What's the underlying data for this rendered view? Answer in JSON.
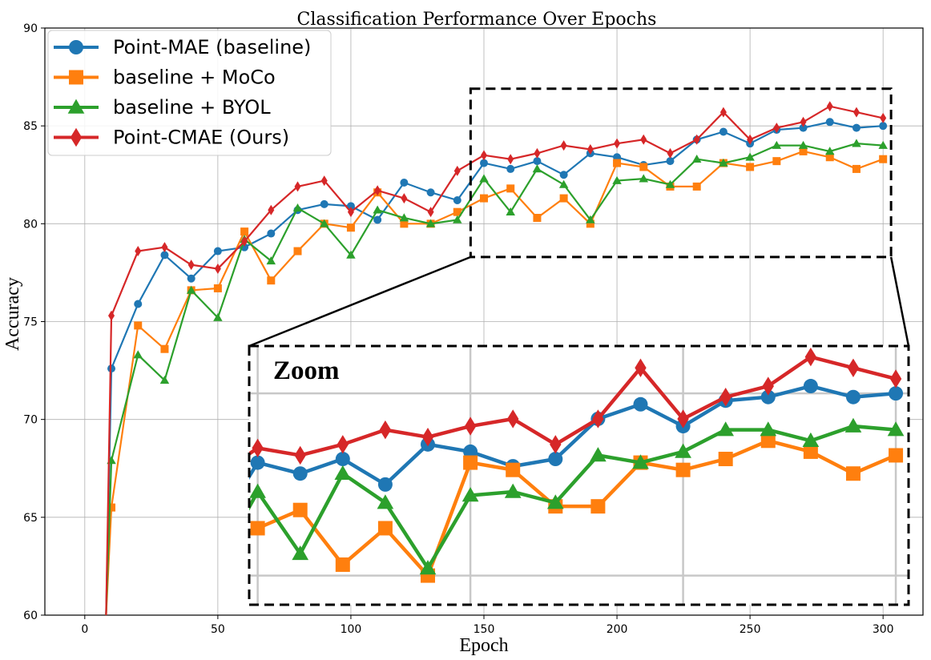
{
  "chart_data": {
    "type": "line",
    "title": "Classification Performance Over Epochs",
    "xlabel": "Epoch",
    "ylabel": "Accuracy",
    "xlim": [
      -15,
      315
    ],
    "ylim": [
      60,
      90
    ],
    "xticks": [
      0,
      50,
      100,
      150,
      200,
      250,
      300
    ],
    "yticks": [
      60,
      65,
      70,
      75,
      80,
      85,
      90
    ],
    "grid": true,
    "legend_position": "top-left",
    "zoom_label": "Zoom",
    "zoom_region": {
      "x": [
        145,
        303
      ],
      "y": [
        78.3,
        86.9
      ]
    },
    "series": [
      {
        "name": "Point-MAE (baseline)",
        "color": "#1f77b4",
        "marker": "circle",
        "x": [
          8,
          10,
          20,
          30,
          40,
          50,
          60,
          70,
          80,
          90,
          100,
          110,
          120,
          130,
          140,
          150,
          160,
          170,
          180,
          190,
          200,
          210,
          220,
          230,
          240,
          250,
          260,
          270,
          280,
          290,
          300
        ],
        "y": [
          60.0,
          72.6,
          75.9,
          78.4,
          77.2,
          78.6,
          78.8,
          79.5,
          80.7,
          81.0,
          80.9,
          80.2,
          82.1,
          81.6,
          81.2,
          83.1,
          82.8,
          83.2,
          82.5,
          83.6,
          83.4,
          83.0,
          83.2,
          84.3,
          84.7,
          84.1,
          84.8,
          84.9,
          85.2,
          84.9,
          85.0
        ]
      },
      {
        "name": "baseline + MoCo",
        "color": "#ff7f0e",
        "marker": "square",
        "x": [
          8,
          10,
          20,
          30,
          40,
          50,
          60,
          70,
          80,
          90,
          100,
          110,
          120,
          130,
          140,
          150,
          160,
          170,
          180,
          190,
          200,
          210,
          220,
          230,
          240,
          250,
          260,
          270,
          280,
          290,
          300
        ],
        "y": [
          60.0,
          65.5,
          74.8,
          73.6,
          76.6,
          76.7,
          79.6,
          77.1,
          78.6,
          80.0,
          79.8,
          81.6,
          80.0,
          80.0,
          80.6,
          81.3,
          81.8,
          80.3,
          81.3,
          80.0,
          83.1,
          82.9,
          81.9,
          81.9,
          83.1,
          82.9,
          83.2,
          83.7,
          83.4,
          82.8,
          83.3
        ]
      },
      {
        "name": "baseline + BYOL",
        "color": "#2ca02c",
        "marker": "triangle",
        "x": [
          8,
          10,
          20,
          30,
          40,
          50,
          60,
          70,
          80,
          90,
          100,
          110,
          120,
          130,
          140,
          150,
          160,
          170,
          180,
          190,
          200,
          210,
          220,
          230,
          240,
          250,
          260,
          270,
          280,
          290,
          300
        ],
        "y": [
          60.0,
          67.9,
          73.3,
          72.0,
          76.6,
          75.2,
          79.2,
          78.1,
          80.8,
          80.0,
          78.4,
          80.7,
          80.3,
          80.0,
          80.2,
          82.3,
          80.6,
          82.8,
          82.0,
          80.2,
          82.2,
          82.3,
          82.0,
          83.3,
          83.1,
          83.4,
          84.0,
          84.0,
          83.7,
          84.1,
          84.0
        ]
      },
      {
        "name": "Point-CMAE (Ours)",
        "color": "#d62728",
        "marker": "diamond",
        "x": [
          8,
          10,
          20,
          30,
          40,
          50,
          60,
          70,
          80,
          90,
          100,
          110,
          120,
          130,
          140,
          150,
          160,
          170,
          180,
          190,
          200,
          210,
          220,
          230,
          240,
          250,
          260,
          270,
          280,
          290,
          300
        ],
        "y": [
          60.0,
          75.3,
          78.6,
          78.8,
          77.9,
          77.7,
          79.1,
          80.7,
          81.9,
          82.2,
          80.6,
          81.7,
          81.3,
          80.6,
          82.7,
          83.5,
          83.3,
          83.6,
          84.0,
          83.8,
          84.1,
          84.3,
          83.6,
          84.3,
          85.7,
          84.3,
          84.9,
          85.2,
          86.0,
          85.7,
          85.4
        ]
      }
    ]
  }
}
